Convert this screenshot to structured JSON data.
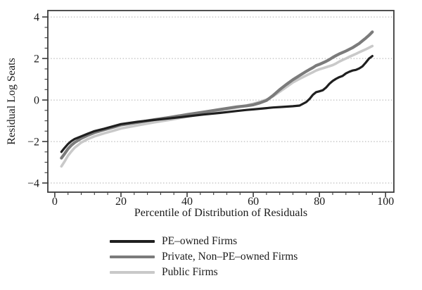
{
  "figure": {
    "background": "#ffffff",
    "xlabel": "Percentile of Distribution of Residuals",
    "ylabel": "Residual Log Seats"
  },
  "axis_colors": {
    "frame": "#3c3c3c",
    "grid": "#aeaeae",
    "tick": "#3c3c3c"
  },
  "chart_data": {
    "type": "line",
    "title": "",
    "xlabel": "Percentile of Distribution of Residuals",
    "ylabel": "Residual Log Seats",
    "xlim": [
      -2.1,
      102.5
    ],
    "ylim": [
      -4.44,
      4.31
    ],
    "x_ticks": [
      0,
      20,
      40,
      60,
      80,
      100
    ],
    "y_ticks": [
      -4,
      -2,
      0,
      2,
      4
    ],
    "x_minor_step": 4,
    "y_minor_step": 0.5,
    "grid": "horizontal-dotted",
    "legend_position": "bottom-left",
    "x": [
      2,
      3,
      4,
      5,
      6,
      8,
      10,
      12,
      15,
      18,
      20,
      25,
      30,
      35,
      40,
      45,
      50,
      55,
      58,
      60,
      62,
      64,
      66,
      68,
      70,
      72,
      74,
      76,
      77,
      78,
      79,
      80,
      81,
      82,
      83,
      84,
      85,
      86,
      87,
      88,
      89,
      90,
      91,
      92,
      93,
      94,
      95,
      96
    ],
    "series": [
      {
        "name": "PE–owned Firms",
        "color": "#1f1f1f",
        "width": 3.2,
        "values": [
          -2.5,
          -2.3,
          -2.12,
          -1.98,
          -1.88,
          -1.75,
          -1.62,
          -1.5,
          -1.38,
          -1.25,
          -1.16,
          -1.05,
          -0.96,
          -0.88,
          -0.79,
          -0.7,
          -0.62,
          -0.53,
          -0.48,
          -0.45,
          -0.42,
          -0.39,
          -0.36,
          -0.34,
          -0.32,
          -0.3,
          -0.27,
          -0.1,
          0.05,
          0.25,
          0.38,
          0.42,
          0.47,
          0.6,
          0.78,
          0.92,
          1.02,
          1.1,
          1.16,
          1.28,
          1.36,
          1.42,
          1.45,
          1.52,
          1.62,
          1.8,
          2.0,
          2.12
        ]
      },
      {
        "name": "Private, Non–PE–owned Firms",
        "color": "#7b7b7b",
        "width": 4.2,
        "values": [
          -2.8,
          -2.58,
          -2.35,
          -2.18,
          -2.05,
          -1.85,
          -1.7,
          -1.57,
          -1.43,
          -1.3,
          -1.2,
          -1.08,
          -0.95,
          -0.83,
          -0.7,
          -0.58,
          -0.45,
          -0.33,
          -0.28,
          -0.23,
          -0.14,
          -0.02,
          0.22,
          0.5,
          0.75,
          0.98,
          1.18,
          1.38,
          1.47,
          1.56,
          1.66,
          1.72,
          1.79,
          1.86,
          1.95,
          2.05,
          2.14,
          2.22,
          2.29,
          2.36,
          2.44,
          2.52,
          2.62,
          2.72,
          2.85,
          2.98,
          3.12,
          3.28
        ]
      },
      {
        "name": "Public Firms",
        "color": "#c9c9c9",
        "width": 3.6,
        "values": [
          -3.2,
          -2.95,
          -2.68,
          -2.48,
          -2.3,
          -2.05,
          -1.88,
          -1.75,
          -1.6,
          -1.47,
          -1.37,
          -1.22,
          -1.08,
          -0.95,
          -0.8,
          -0.65,
          -0.5,
          -0.36,
          -0.26,
          -0.18,
          -0.09,
          0.02,
          0.18,
          0.4,
          0.62,
          0.85,
          1.02,
          1.18,
          1.26,
          1.34,
          1.42,
          1.48,
          1.53,
          1.58,
          1.63,
          1.68,
          1.76,
          1.85,
          1.93,
          2.0,
          2.08,
          2.15,
          2.22,
          2.3,
          2.37,
          2.44,
          2.52,
          2.6
        ]
      }
    ]
  }
}
